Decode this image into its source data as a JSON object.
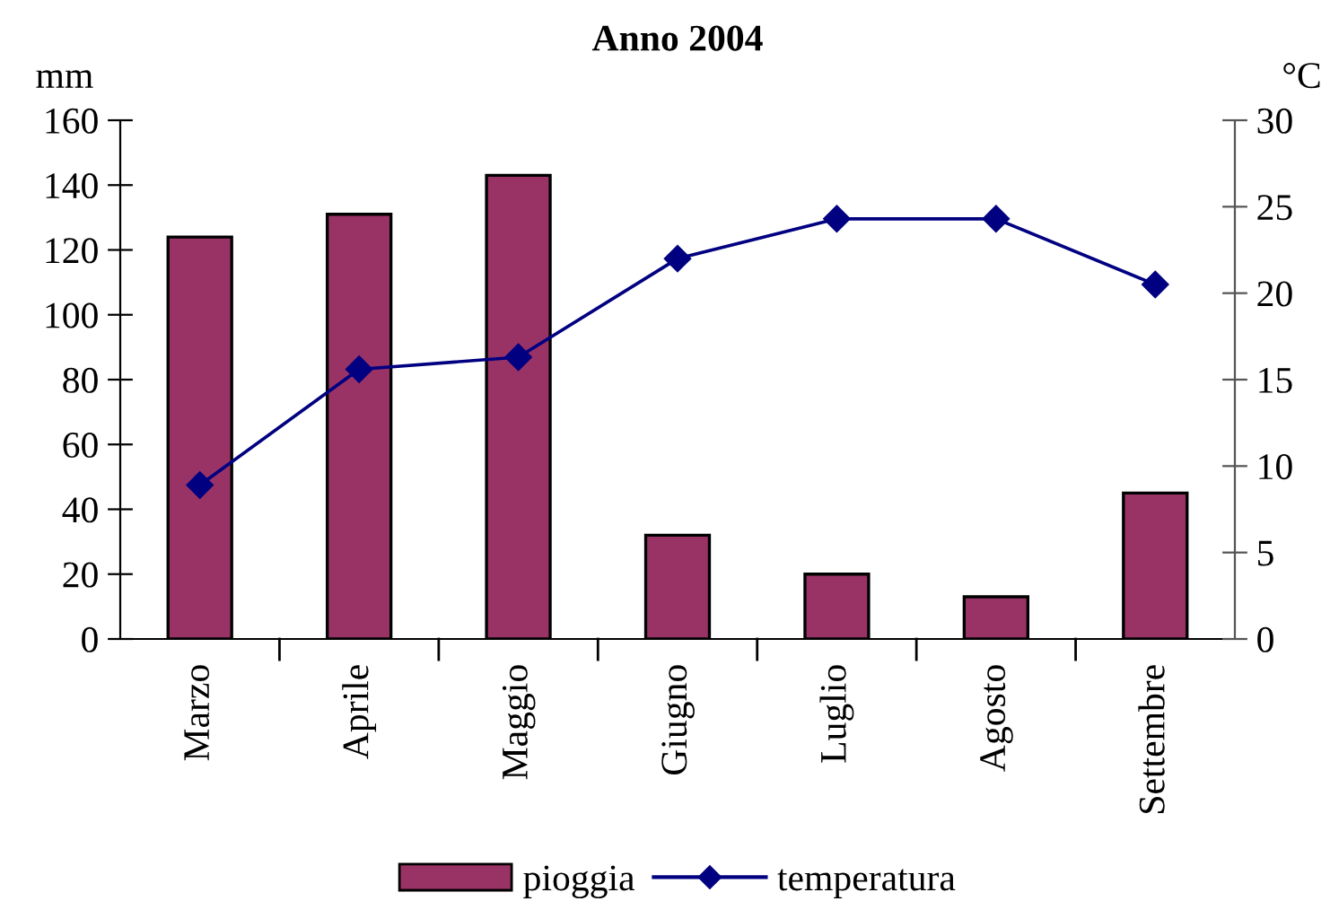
{
  "chart_data": {
    "type": "bar",
    "title": "Anno 2004",
    "ylabel": "mm",
    "y2label": "°C",
    "categories": [
      "Marzo",
      "Aprile",
      "Maggio",
      "Giugno",
      "Luglio",
      "Agosto",
      "Settembre"
    ],
    "series": [
      {
        "name": "pioggia",
        "color": "#993366",
        "values": [
          124,
          131,
          143,
          32,
          20,
          13,
          45
        ]
      },
      {
        "name": "temperatura",
        "type": "line",
        "axis": "y2",
        "color": "#000080",
        "marker": "diamond",
        "line_style": "solid",
        "values": [
          8.9,
          15.6,
          16.3,
          22.0,
          24.3,
          24.3,
          20.5
        ]
      }
    ],
    "ylim": [
      0,
      160
    ],
    "yticks": [
      0,
      20,
      40,
      60,
      80,
      100,
      120,
      140,
      160
    ],
    "y2lim": [
      0,
      30
    ],
    "y2ticks": [
      0,
      5,
      10,
      15,
      20,
      25,
      30
    ],
    "grid": false,
    "legend": "bottom"
  }
}
